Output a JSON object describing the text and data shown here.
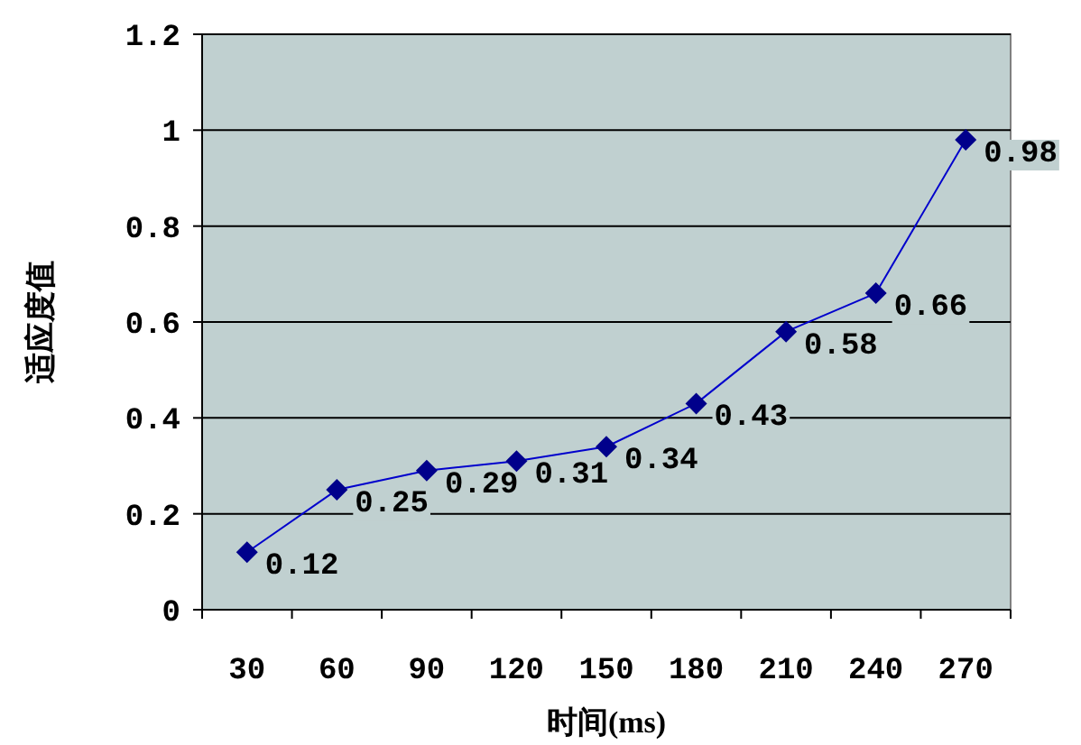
{
  "chart_data": {
    "type": "line",
    "xlabel": "时间(ms)",
    "ylabel": "适应度值",
    "categories": [
      "30",
      "60",
      "90",
      "120",
      "150",
      "180",
      "210",
      "240",
      "270"
    ],
    "series": [
      {
        "color": "#00008b",
        "values": [
          0.12,
          0.25,
          0.29,
          0.31,
          0.34,
          0.43,
          0.58,
          0.66,
          0.98
        ]
      }
    ],
    "ylim": [
      0,
      1.2
    ],
    "yticks": [
      0,
      0.2,
      0.4,
      0.6,
      0.8,
      1,
      1.2
    ],
    "grid": "y",
    "marker": "diamond",
    "line_style": "solid",
    "data_labels": true
  }
}
